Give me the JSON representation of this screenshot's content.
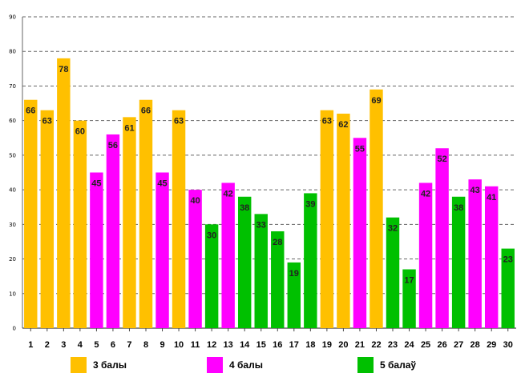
{
  "chart_data": {
    "type": "bar",
    "categories": [
      "1",
      "2",
      "3",
      "4",
      "5",
      "6",
      "7",
      "8",
      "9",
      "10",
      "11",
      "12",
      "13",
      "14",
      "15",
      "16",
      "17",
      "18",
      "19",
      "20",
      "21",
      "22",
      "23",
      "24",
      "25",
      "26",
      "27",
      "28",
      "29",
      "30"
    ],
    "values": [
      66,
      63,
      78,
      60,
      45,
      56,
      61,
      66,
      45,
      63,
      40,
      30,
      42,
      38,
      33,
      28,
      19,
      39,
      63,
      62,
      55,
      69,
      32,
      17,
      42,
      52,
      38,
      43,
      41,
      23
    ],
    "groups": [
      0,
      0,
      0,
      0,
      1,
      1,
      0,
      0,
      1,
      0,
      1,
      2,
      1,
      2,
      2,
      2,
      2,
      2,
      0,
      0,
      1,
      0,
      2,
      2,
      1,
      1,
      2,
      1,
      1,
      2
    ],
    "legend": [
      {
        "label": "3 балы",
        "color": "#FFC000"
      },
      {
        "label": "4 балы",
        "color": "#FF00FF"
      },
      {
        "label": "5 балаў",
        "color": "#00C000"
      }
    ],
    "ylim": [
      0,
      90
    ],
    "yticks": [
      0,
      10,
      20,
      30,
      40,
      50,
      60,
      70,
      80,
      90
    ],
    "grid": true,
    "title": "",
    "xlabel": "",
    "ylabel": ""
  }
}
